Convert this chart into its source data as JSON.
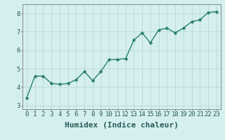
{
  "x": [
    0,
    1,
    2,
    3,
    4,
    5,
    6,
    7,
    8,
    9,
    10,
    11,
    12,
    13,
    14,
    15,
    16,
    17,
    18,
    19,
    20,
    21,
    22,
    23
  ],
  "y": [
    3.4,
    4.6,
    4.6,
    4.2,
    4.15,
    4.2,
    4.4,
    4.85,
    4.35,
    4.85,
    5.5,
    5.5,
    5.55,
    6.55,
    6.95,
    6.4,
    7.1,
    7.2,
    6.95,
    7.2,
    7.55,
    7.65,
    8.05,
    8.1
  ],
  "xlabel": "Humidex (Indice chaleur)",
  "xlim": [
    -0.5,
    23.5
  ],
  "ylim": [
    2.8,
    8.5
  ],
  "yticks": [
    3,
    4,
    5,
    6,
    7,
    8
  ],
  "xticks": [
    0,
    1,
    2,
    3,
    4,
    5,
    6,
    7,
    8,
    9,
    10,
    11,
    12,
    13,
    14,
    15,
    16,
    17,
    18,
    19,
    20,
    21,
    22,
    23
  ],
  "line_color": "#2a7f72",
  "bg_color": "#d5efef",
  "grid_color": "#b8d8d8",
  "xlabel_fontsize": 8,
  "tick_fontsize": 6.5,
  "line_width": 1.0,
  "marker_size": 2.5
}
